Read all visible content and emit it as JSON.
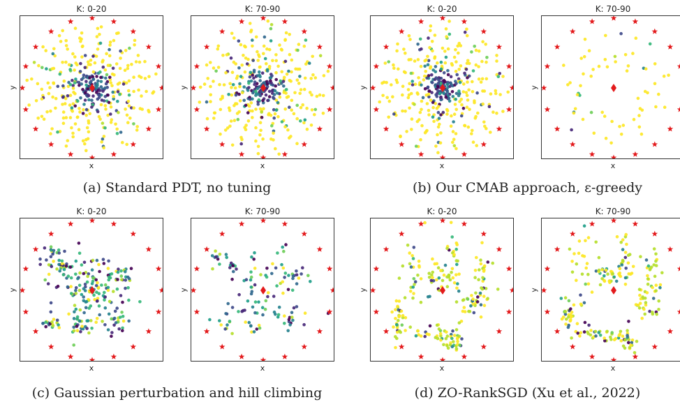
{
  "colors": {
    "star": "#e31a1c",
    "marker": "#e31a1c",
    "palette": [
      "#fde725",
      "#b5de2b",
      "#6ece58",
      "#35b779",
      "#1f9e89",
      "#26828e",
      "#31688e",
      "#3e4989",
      "#482878",
      "#440154"
    ]
  },
  "chart_data": [
    {
      "type": "scatter",
      "group": "a",
      "title": "K: 0-20",
      "xlabel": "x",
      "ylabel": "y",
      "pattern": "radial",
      "dense": true,
      "goal_count": 20,
      "grid": false,
      "legend": "none"
    },
    {
      "type": "scatter",
      "group": "a",
      "title": "K: 70-90",
      "xlabel": "x",
      "ylabel": "y",
      "pattern": "radial",
      "dense": true,
      "goal_count": 20,
      "grid": false,
      "legend": "none"
    },
    {
      "type": "scatter",
      "group": "b",
      "title": "K: 0-20",
      "xlabel": "x",
      "ylabel": "y",
      "pattern": "radial",
      "dense": true,
      "goal_count": 20,
      "grid": false,
      "legend": "none"
    },
    {
      "type": "scatter",
      "group": "b",
      "title": "K: 70-90",
      "xlabel": "x",
      "ylabel": "y",
      "pattern": "radial",
      "dense": false,
      "goal_count": 20,
      "grid": false,
      "legend": "none"
    },
    {
      "type": "scatter",
      "group": "c",
      "title": "K: 0-20",
      "xlabel": "x",
      "ylabel": "y",
      "pattern": "clusters",
      "dense": true,
      "goal_count": 20,
      "grid": false,
      "legend": "none"
    },
    {
      "type": "scatter",
      "group": "c",
      "title": "K: 70-90",
      "xlabel": "x",
      "ylabel": "y",
      "pattern": "clusters",
      "dense": false,
      "goal_count": 20,
      "grid": false,
      "legend": "none"
    },
    {
      "type": "scatter",
      "group": "d",
      "title": "K: 0-20",
      "xlabel": "x",
      "ylabel": "y",
      "pattern": "blobs",
      "dense": true,
      "goal_count": 20,
      "grid": false,
      "legend": "none"
    },
    {
      "type": "scatter",
      "group": "d",
      "title": "K: 70-90",
      "xlabel": "x",
      "ylabel": "y",
      "pattern": "blobs",
      "dense": true,
      "goal_count": 20,
      "grid": false,
      "legend": "none"
    }
  ],
  "captions": {
    "a": "(a) Standard PDT, no tuning",
    "b": "(b) Our CMAB approach, ε-greedy",
    "c": "(c) Gaussian perturbation and hill climbing",
    "d": "(d) ZO-RankSGD (Xu et al., 2022)"
  }
}
